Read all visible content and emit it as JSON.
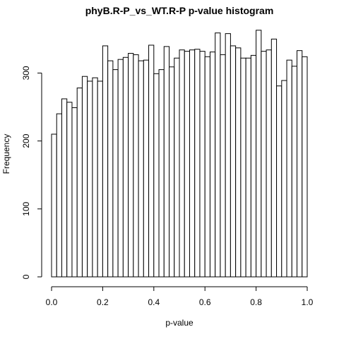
{
  "chart_data": {
    "type": "bar",
    "title": "phyB.R-P_vs_WT.R-P p-value histogram",
    "xlabel": "p-value",
    "ylabel": "Frequency",
    "xlim": [
      0,
      1
    ],
    "ylim": [
      0,
      365
    ],
    "bin_width": 0.02,
    "x_ticks": [
      0.0,
      0.2,
      0.4,
      0.6,
      0.8,
      1.0
    ],
    "x_tick_labels": [
      "0.0",
      "0.2",
      "0.4",
      "0.6",
      "0.8",
      "1.0"
    ],
    "y_ticks": [
      0,
      100,
      200,
      300
    ],
    "y_tick_labels": [
      "0",
      "100",
      "200",
      "300"
    ],
    "bin_starts": [
      0.0,
      0.02,
      0.04,
      0.06,
      0.08,
      0.1,
      0.12,
      0.14,
      0.16,
      0.18,
      0.2,
      0.22,
      0.24,
      0.26,
      0.28,
      0.3,
      0.32,
      0.34,
      0.36,
      0.38,
      0.4,
      0.42,
      0.44,
      0.46,
      0.48,
      0.5,
      0.52,
      0.54,
      0.56,
      0.58,
      0.6,
      0.62,
      0.64,
      0.66,
      0.68,
      0.7,
      0.72,
      0.74,
      0.76,
      0.78,
      0.8,
      0.82,
      0.84,
      0.86,
      0.88,
      0.9,
      0.92,
      0.94,
      0.96,
      0.98
    ],
    "values": [
      210,
      240,
      262,
      257,
      249,
      278,
      295,
      288,
      293,
      288,
      340,
      318,
      305,
      320,
      323,
      329,
      327,
      318,
      319,
      341,
      299,
      305,
      339,
      309,
      322,
      334,
      332,
      334,
      335,
      332,
      324,
      331,
      359,
      327,
      358,
      340,
      337,
      322,
      322,
      326,
      363,
      332,
      334,
      350,
      281,
      289,
      319,
      310,
      333,
      324
    ],
    "colors": {
      "bar_fill": "#ffffff",
      "bar_stroke": "#000000",
      "background": "#ffffff"
    },
    "grid": false,
    "legend": "none"
  }
}
